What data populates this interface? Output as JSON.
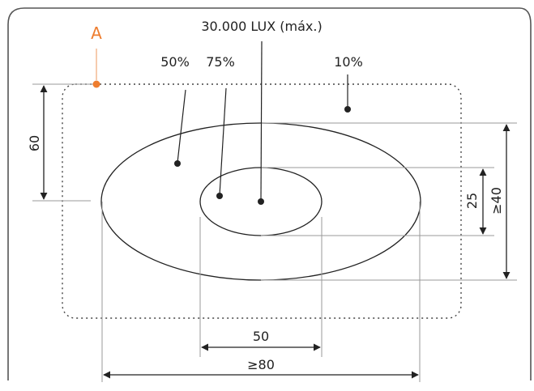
{
  "labels": {
    "point_a": "A",
    "max_lux": "30.000 LUX (máx.)",
    "pct_50": "50%",
    "pct_75": "75%",
    "pct_10": "10%"
  },
  "dimensions": {
    "height_60": "60",
    "height_25": "25",
    "height_40": "≥40",
    "width_50": "50",
    "width_80": "≥80"
  },
  "colors": {
    "accent": "#ee7d2f",
    "line": "#222222",
    "guide": "#9a9a9a",
    "frame": "#555555"
  }
}
